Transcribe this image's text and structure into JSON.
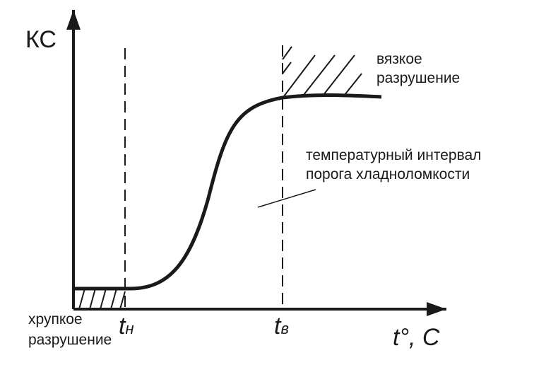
{
  "y_axis": {
    "label": "КС"
  },
  "x_axis": {
    "label": "t°, C"
  },
  "markers": [
    {
      "symbol": "t",
      "subscript": "н"
    },
    {
      "symbol": "t",
      "subscript": "в"
    }
  ],
  "annotations": {
    "ductile": [
      "вязкое",
      "разрушение"
    ],
    "interval": [
      "температурный интервал",
      "порога хладноломкости"
    ],
    "brittle": [
      "хрупкое",
      "разрушение"
    ]
  }
}
